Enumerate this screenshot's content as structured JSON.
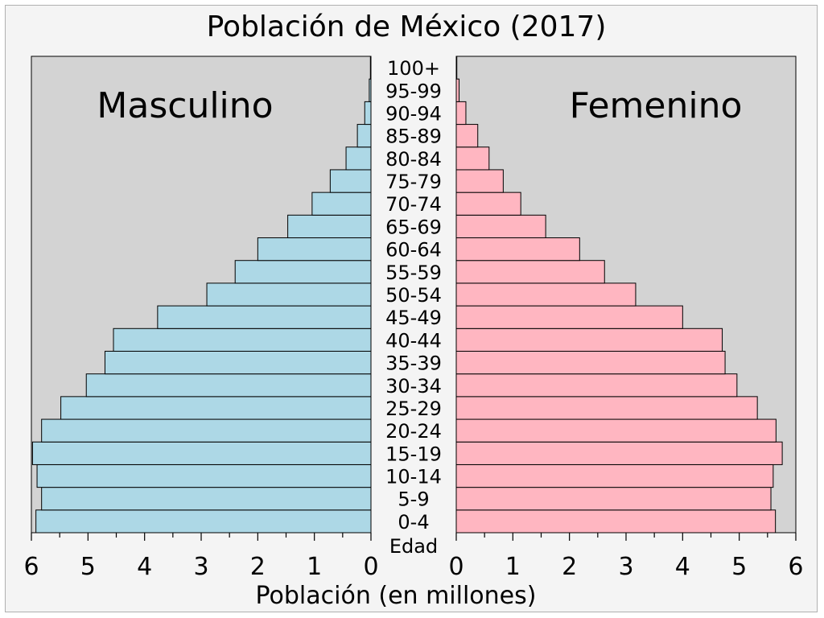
{
  "chart_data": {
    "type": "bar",
    "orientation": "horizontal-pyramid",
    "title": "Población de México (2017)",
    "xlabel": "Población (en millones)",
    "ylabel": "Edad",
    "xlim": [
      0,
      6
    ],
    "x_ticks": [
      "6",
      "5",
      "4",
      "3",
      "2",
      "1",
      "0",
      "0",
      "1",
      "2",
      "3",
      "4",
      "5",
      "6"
    ],
    "categories": [
      "0-4",
      "5-9",
      "10-14",
      "15-19",
      "20-24",
      "25-29",
      "30-34",
      "35-39",
      "40-44",
      "45-49",
      "50-54",
      "55-59",
      "60-64",
      "65-69",
      "70-74",
      "75-79",
      "80-84",
      "85-89",
      "90-94",
      "95-99",
      "100+"
    ],
    "series": [
      {
        "name": "Masculino",
        "color": "#add8e6",
        "values": [
          5.92,
          5.82,
          5.9,
          5.98,
          5.82,
          5.48,
          5.03,
          4.7,
          4.55,
          3.77,
          2.9,
          2.4,
          2.0,
          1.47,
          1.04,
          0.72,
          0.44,
          0.24,
          0.11,
          0.03,
          0.01
        ]
      },
      {
        "name": "Femenino",
        "color": "#ffb6c1",
        "values": [
          5.64,
          5.56,
          5.6,
          5.76,
          5.65,
          5.32,
          4.96,
          4.75,
          4.7,
          4.0,
          3.17,
          2.62,
          2.18,
          1.58,
          1.14,
          0.83,
          0.58,
          0.38,
          0.17,
          0.05,
          0.01
        ]
      }
    ],
    "grid": false,
    "panel_background": "#d3d3d3",
    "panel_labels": [
      "Masculino",
      "Femenino"
    ]
  }
}
